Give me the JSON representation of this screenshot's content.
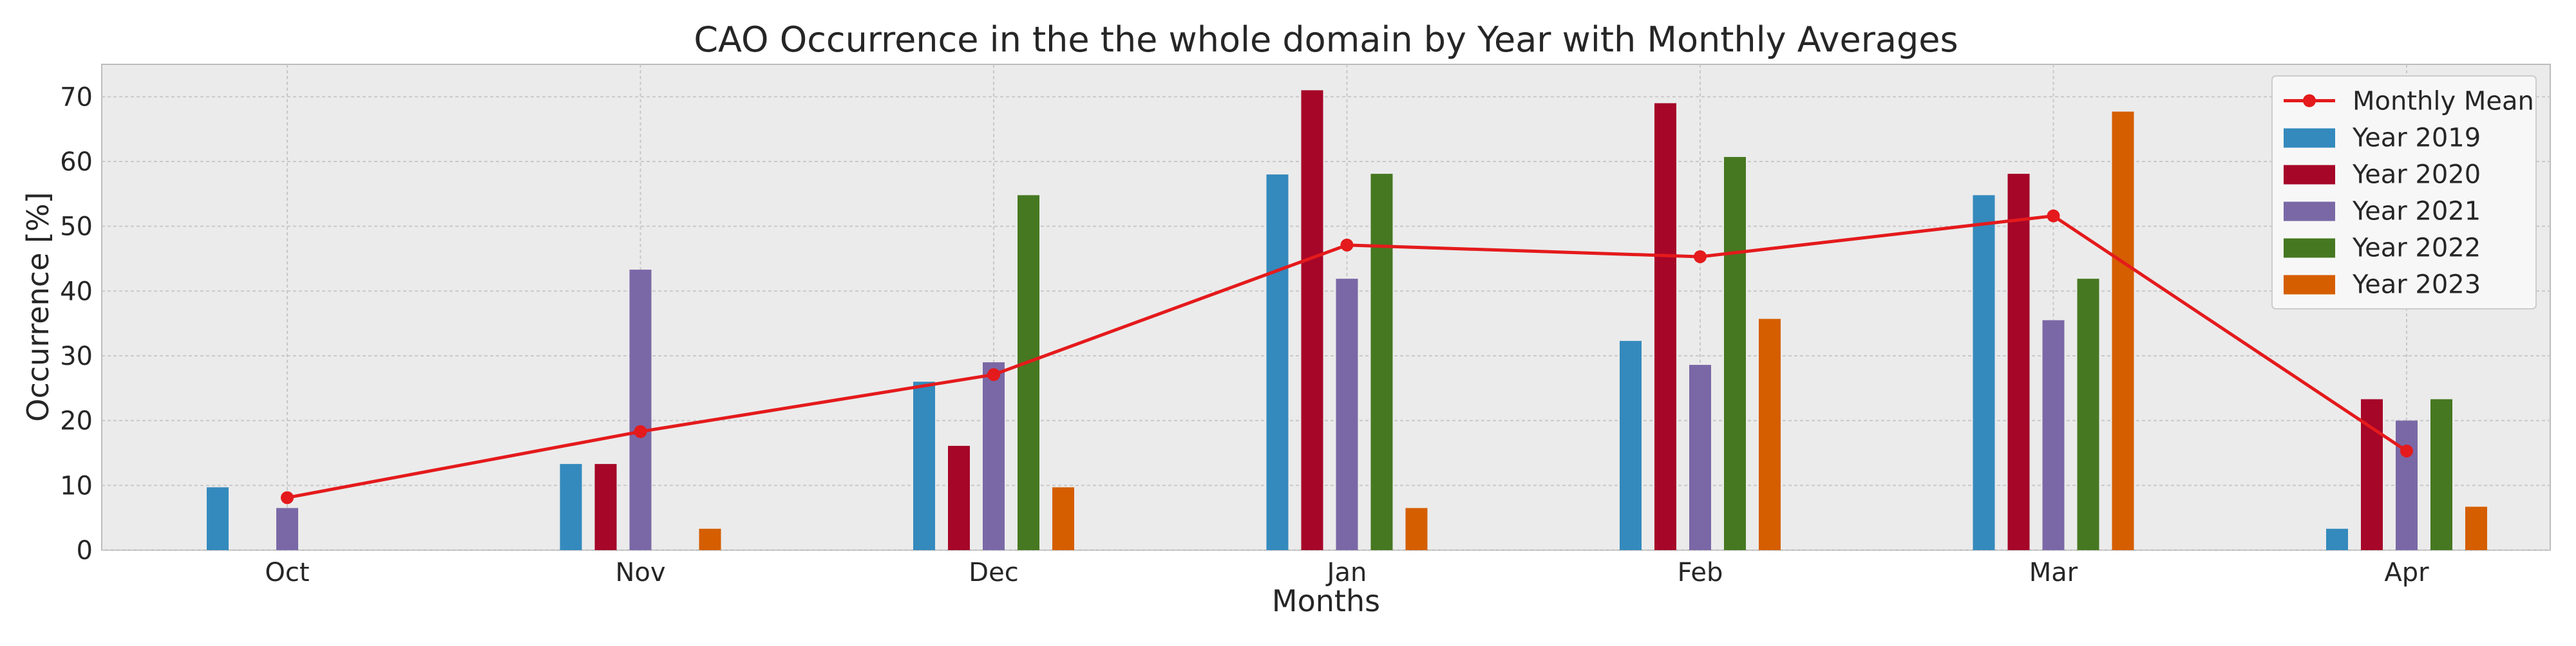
{
  "chart_data": {
    "type": "bar",
    "title": "CAO Occurrence in the the whole domain by Year with Monthly Averages",
    "xlabel": "Months",
    "ylabel": "Occurrence [%]",
    "categories": [
      "Oct",
      "Nov",
      "Dec",
      "Jan",
      "Feb",
      "Mar",
      "Apr"
    ],
    "ylim": [
      0,
      75
    ],
    "yticks": [
      0,
      10,
      20,
      30,
      40,
      50,
      60,
      70
    ],
    "grid": true,
    "legend_position": "top-right",
    "series": [
      {
        "name": "Year 2019",
        "color": "#348ABD",
        "values": [
          9.7,
          13.3,
          26.0,
          58.0,
          32.3,
          54.8,
          3.3
        ]
      },
      {
        "name": "Year 2020",
        "color": "#A60628",
        "values": [
          null,
          13.3,
          16.1,
          71.0,
          69.0,
          58.1,
          23.3
        ]
      },
      {
        "name": "Year 2021",
        "color": "#7A68A6",
        "values": [
          6.5,
          43.3,
          29.0,
          41.9,
          28.6,
          35.5,
          20.0
        ]
      },
      {
        "name": "Year 2022",
        "color": "#467821",
        "values": [
          null,
          null,
          54.8,
          58.1,
          60.7,
          41.9,
          23.3
        ]
      },
      {
        "name": "Year 2023",
        "color": "#D55E00",
        "values": [
          null,
          3.3,
          9.7,
          6.5,
          35.7,
          67.7,
          6.7
        ]
      }
    ],
    "line_series": {
      "name": "Monthly Mean",
      "color": "#E41A1C",
      "values": [
        8.1,
        18.3,
        27.1,
        47.1,
        45.3,
        51.6,
        15.3
      ]
    },
    "category_offsets": [
      -1,
      0,
      0,
      0,
      0,
      0,
      0
    ]
  }
}
